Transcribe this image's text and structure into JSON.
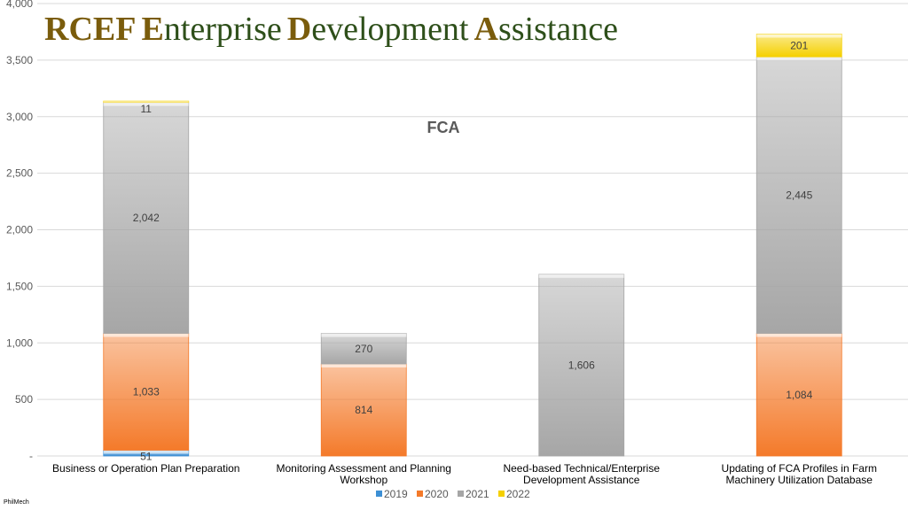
{
  "title": {
    "rcef": "RCEF",
    "e_cap": "E",
    "e_rest": "nterprise",
    "d_cap": "D",
    "d_rest": "evelopment",
    "a_cap": "A",
    "a_rest": "ssistance"
  },
  "footer": "PhilMech",
  "colors": {
    "title_caps": "#7a5c0c",
    "title_lower": "#2e4f1a"
  },
  "chart_data": {
    "type": "bar",
    "stacked": true,
    "title": "FCA",
    "xlabel": "",
    "ylabel": "",
    "ylim": [
      0,
      4000
    ],
    "yticks": [
      0,
      500,
      1000,
      1500,
      2000,
      2500,
      3000,
      3500,
      4000
    ],
    "ytick_labels": [
      "-",
      "500",
      "1,000",
      "1,500",
      "2,000",
      "2,500",
      "3,000",
      "3,500",
      "4,000"
    ],
    "categories": [
      [
        "Business or Operation Plan Preparation"
      ],
      [
        "Monitoring Assessment and Planning",
        "Workshop"
      ],
      [
        "Need-based Technical/Enterprise",
        "Development Assistance"
      ],
      [
        "Updating of FCA Profiles in Farm",
        "Machinery Utilization Database"
      ]
    ],
    "series": [
      {
        "name": "2019",
        "color": "#3d8fd4",
        "values": [
          51,
          0,
          0,
          0
        ],
        "labels": [
          "51",
          "",
          "",
          ""
        ]
      },
      {
        "name": "2020",
        "color": "#f47a2a",
        "values": [
          1033,
          814,
          0,
          1084
        ],
        "labels": [
          "1,033",
          "814",
          "",
          "1,084"
        ]
      },
      {
        "name": "2021",
        "color": "#a6a6a6",
        "values": [
          2042,
          270,
          1606,
          2445
        ],
        "labels": [
          "2,042",
          "270",
          "1,606",
          "2,445"
        ]
      },
      {
        "name": "2022",
        "color": "#f5d000",
        "values": [
          11,
          0,
          0,
          201
        ],
        "labels": [
          "11",
          "",
          "",
          "201"
        ]
      }
    ],
    "grid": true,
    "legend_position": "bottom"
  }
}
